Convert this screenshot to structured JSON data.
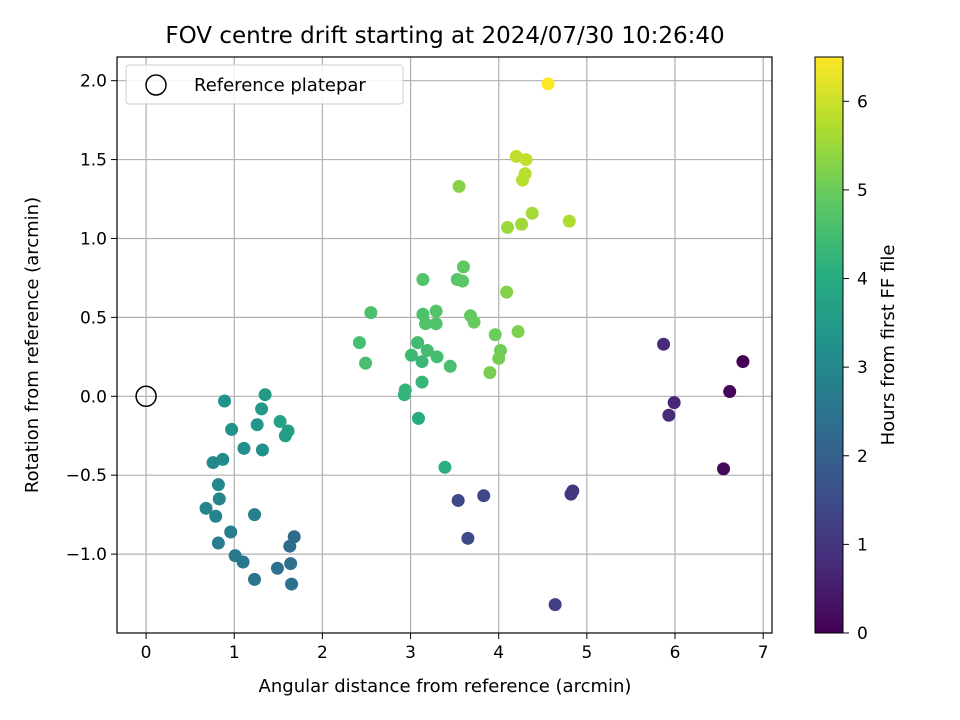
{
  "chart_data": {
    "type": "scatter",
    "title": "FOV centre drift starting at 2024/07/30 10:26:40",
    "xlabel": "Angular distance from reference (arcmin)",
    "ylabel": "Rotation from reference (arcmin)",
    "xlim": [
      -0.33,
      7.1
    ],
    "ylim": [
      -1.5,
      2.15
    ],
    "xticks": [
      0,
      1,
      2,
      3,
      4,
      5,
      6,
      7
    ],
    "yticks": [
      -1.0,
      -0.5,
      0.0,
      0.5,
      1.0,
      1.5,
      2.0
    ],
    "xtick_labels": [
      "0",
      "1",
      "2",
      "3",
      "4",
      "5",
      "6",
      "7"
    ],
    "ytick_labels": [
      "−1.0",
      "−0.5",
      "0.0",
      "0.5",
      "1.0",
      "1.5",
      "2.0"
    ],
    "grid": true,
    "legend": {
      "placement": "top-left",
      "entries": [
        "Reference platepar"
      ]
    },
    "reference": {
      "x": 0,
      "y": 0
    },
    "colorbar": {
      "label": "Hours from first FF file",
      "range": [
        0,
        6.5
      ],
      "ticks": [
        0,
        1,
        2,
        3,
        4,
        5,
        6
      ],
      "colormap": "viridis"
    },
    "points": [
      {
        "x": 6.77,
        "y": 0.22,
        "t": 0.0
      },
      {
        "x": 6.62,
        "y": 0.03,
        "t": 0.1
      },
      {
        "x": 6.55,
        "y": -0.46,
        "t": 0.15
      },
      {
        "x": 5.99,
        "y": -0.04,
        "t": 0.7
      },
      {
        "x": 5.93,
        "y": -0.12,
        "t": 0.75
      },
      {
        "x": 5.87,
        "y": 0.33,
        "t": 0.8
      },
      {
        "x": 4.84,
        "y": -0.6,
        "t": 1.0
      },
      {
        "x": 4.82,
        "y": -0.62,
        "t": 1.0
      },
      {
        "x": 4.64,
        "y": -1.32,
        "t": 1.2
      },
      {
        "x": 3.83,
        "y": -0.63,
        "t": 1.4
      },
      {
        "x": 3.54,
        "y": -0.66,
        "t": 1.45
      },
      {
        "x": 3.65,
        "y": -0.9,
        "t": 1.5
      },
      {
        "x": 1.68,
        "y": -0.89,
        "t": 2.25
      },
      {
        "x": 1.63,
        "y": -0.95,
        "t": 2.3
      },
      {
        "x": 1.64,
        "y": -1.06,
        "t": 2.35
      },
      {
        "x": 1.65,
        "y": -1.19,
        "t": 2.4
      },
      {
        "x": 1.49,
        "y": -1.09,
        "t": 2.45
      },
      {
        "x": 1.23,
        "y": -1.16,
        "t": 2.5
      },
      {
        "x": 1.1,
        "y": -1.05,
        "t": 2.55
      },
      {
        "x": 1.01,
        "y": -1.01,
        "t": 2.6
      },
      {
        "x": 0.82,
        "y": -0.93,
        "t": 2.7
      },
      {
        "x": 0.96,
        "y": -0.86,
        "t": 2.75
      },
      {
        "x": 1.23,
        "y": -0.75,
        "t": 2.8
      },
      {
        "x": 0.79,
        "y": -0.76,
        "t": 2.85
      },
      {
        "x": 0.68,
        "y": -0.71,
        "t": 2.9
      },
      {
        "x": 0.83,
        "y": -0.65,
        "t": 2.95
      },
      {
        "x": 0.82,
        "y": -0.56,
        "t": 3.0
      },
      {
        "x": 0.76,
        "y": -0.42,
        "t": 3.05
      },
      {
        "x": 0.87,
        "y": -0.4,
        "t": 3.1
      },
      {
        "x": 1.11,
        "y": -0.33,
        "t": 3.2
      },
      {
        "x": 1.32,
        "y": -0.34,
        "t": 3.25
      },
      {
        "x": 0.97,
        "y": -0.21,
        "t": 3.3
      },
      {
        "x": 0.89,
        "y": -0.03,
        "t": 3.35
      },
      {
        "x": 1.26,
        "y": -0.18,
        "t": 3.4
      },
      {
        "x": 1.31,
        "y": -0.08,
        "t": 3.45
      },
      {
        "x": 1.35,
        "y": 0.01,
        "t": 3.5
      },
      {
        "x": 1.61,
        "y": -0.22,
        "t": 3.55
      },
      {
        "x": 1.58,
        "y": -0.25,
        "t": 3.6
      },
      {
        "x": 1.52,
        "y": -0.16,
        "t": 3.7
      },
      {
        "x": 3.09,
        "y": -0.14,
        "t": 4.0
      },
      {
        "x": 3.39,
        "y": -0.45,
        "t": 4.1
      },
      {
        "x": 2.93,
        "y": 0.01,
        "t": 4.2
      },
      {
        "x": 2.94,
        "y": 0.04,
        "t": 4.25
      },
      {
        "x": 3.13,
        "y": 0.09,
        "t": 4.3
      },
      {
        "x": 3.13,
        "y": 0.22,
        "t": 4.35
      },
      {
        "x": 3.01,
        "y": 0.26,
        "t": 4.4
      },
      {
        "x": 3.08,
        "y": 0.34,
        "t": 4.45
      },
      {
        "x": 3.19,
        "y": 0.29,
        "t": 4.5
      },
      {
        "x": 3.3,
        "y": 0.25,
        "t": 4.5
      },
      {
        "x": 2.42,
        "y": 0.34,
        "t": 4.5
      },
      {
        "x": 2.49,
        "y": 0.21,
        "t": 4.55
      },
      {
        "x": 3.45,
        "y": 0.19,
        "t": 4.55
      },
      {
        "x": 2.55,
        "y": 0.53,
        "t": 4.6
      },
      {
        "x": 3.14,
        "y": 0.52,
        "t": 4.6
      },
      {
        "x": 3.17,
        "y": 0.46,
        "t": 4.65
      },
      {
        "x": 3.29,
        "y": 0.46,
        "t": 4.65
      },
      {
        "x": 3.29,
        "y": 0.54,
        "t": 4.7
      },
      {
        "x": 3.14,
        "y": 0.74,
        "t": 4.7
      },
      {
        "x": 3.53,
        "y": 0.74,
        "t": 4.75
      },
      {
        "x": 3.59,
        "y": 0.73,
        "t": 4.8
      },
      {
        "x": 3.6,
        "y": 0.82,
        "t": 4.85
      },
      {
        "x": 3.68,
        "y": 0.51,
        "t": 4.9
      },
      {
        "x": 3.72,
        "y": 0.47,
        "t": 4.95
      },
      {
        "x": 3.96,
        "y": 0.39,
        "t": 5.0
      },
      {
        "x": 4.02,
        "y": 0.29,
        "t": 5.05
      },
      {
        "x": 4.0,
        "y": 0.24,
        "t": 5.1
      },
      {
        "x": 3.9,
        "y": 0.15,
        "t": 5.15
      },
      {
        "x": 4.22,
        "y": 0.41,
        "t": 5.2
      },
      {
        "x": 4.09,
        "y": 0.66,
        "t": 5.25
      },
      {
        "x": 3.55,
        "y": 1.33,
        "t": 5.3
      },
      {
        "x": 4.1,
        "y": 1.07,
        "t": 5.5
      },
      {
        "x": 4.26,
        "y": 1.09,
        "t": 5.55
      },
      {
        "x": 4.38,
        "y": 1.16,
        "t": 5.6
      },
      {
        "x": 4.8,
        "y": 1.11,
        "t": 5.7
      },
      {
        "x": 4.27,
        "y": 1.37,
        "t": 5.75
      },
      {
        "x": 4.3,
        "y": 1.41,
        "t": 5.8
      },
      {
        "x": 4.2,
        "y": 1.52,
        "t": 5.85
      },
      {
        "x": 4.31,
        "y": 1.5,
        "t": 5.9
      },
      {
        "x": 4.56,
        "y": 1.98,
        "t": 6.5
      }
    ]
  }
}
